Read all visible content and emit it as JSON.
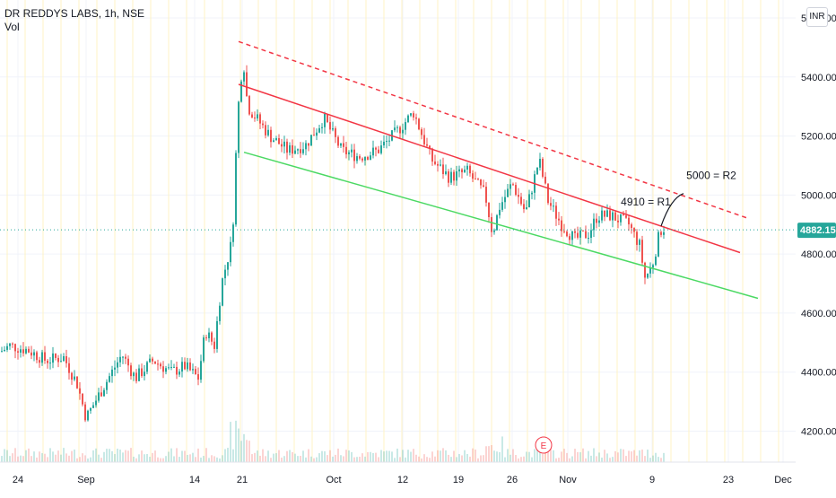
{
  "header": {
    "symbol_line": "DR REDDYS LABS, 1h, NSE",
    "volume_label": "Vol"
  },
  "currency_badge": "INR",
  "colors": {
    "up": "#26a69a",
    "down": "#ef5350",
    "resistance_line": "#f23645",
    "support_line": "#4cd964",
    "price_marker": "#26a69a",
    "grid": "#f0f3fa",
    "session_divider": "#fff3c4"
  },
  "chart_data": {
    "type": "candlestick",
    "title": "DR REDDYS LABS, 1h, NSE",
    "y_ticks": [
      {
        "label": "4200.00",
        "value": 4200
      },
      {
        "label": "4400.00",
        "value": 4400
      },
      {
        "label": "4600.00",
        "value": 4600
      },
      {
        "label": "4800.00",
        "value": 4800
      },
      {
        "label": "5000.00",
        "value": 5000
      },
      {
        "label": "5200.00",
        "value": 5200
      },
      {
        "label": "5400.00",
        "value": 5400
      },
      {
        "label": "5600.00",
        "value": 5600
      }
    ],
    "ylim": [
      4125,
      5635
    ],
    "x_ticks": [
      "24",
      "Sep",
      "14",
      "21",
      "Oct",
      "12",
      "19",
      "26",
      "Nov",
      "9",
      "23",
      "Dec"
    ],
    "last_price": {
      "label": "4882.15",
      "value": 4882.15
    },
    "price_path": [
      [
        0,
        4470
      ],
      [
        10,
        4490
      ],
      [
        30,
        4475
      ],
      [
        50,
        4440
      ],
      [
        70,
        4450
      ],
      [
        85,
        4360
      ],
      [
        95,
        4245
      ],
      [
        105,
        4300
      ],
      [
        120,
        4380
      ],
      [
        135,
        4460
      ],
      [
        150,
        4380
      ],
      [
        170,
        4440
      ],
      [
        190,
        4400
      ],
      [
        205,
        4420
      ],
      [
        220,
        4380
      ],
      [
        228,
        4540
      ],
      [
        238,
        4490
      ],
      [
        246,
        4700
      ],
      [
        258,
        4850
      ],
      [
        264,
        5280
      ],
      [
        270,
        5470
      ],
      [
        275,
        5300
      ],
      [
        300,
        5200
      ],
      [
        320,
        5150
      ],
      [
        340,
        5170
      ],
      [
        360,
        5260
      ],
      [
        380,
        5150
      ],
      [
        400,
        5130
      ],
      [
        420,
        5150
      ],
      [
        440,
        5210
      ],
      [
        460,
        5280
      ],
      [
        480,
        5120
      ],
      [
        500,
        5060
      ],
      [
        520,
        5080
      ],
      [
        540,
        5000
      ],
      [
        548,
        4870
      ],
      [
        556,
        4960
      ],
      [
        570,
        5040
      ],
      [
        585,
        4940
      ],
      [
        600,
        5120
      ],
      [
        610,
        4980
      ],
      [
        625,
        4900
      ],
      [
        640,
        4850
      ],
      [
        655,
        4870
      ],
      [
        665,
        4930
      ],
      [
        680,
        4930
      ],
      [
        700,
        4900
      ],
      [
        712,
        4830
      ],
      [
        718,
        4720
      ],
      [
        726,
        4760
      ],
      [
        735,
        4880
      ],
      [
        740,
        4890
      ]
    ],
    "lines": [
      {
        "name": "upper-dashed-resistance",
        "style": "dashed",
        "color": "#f23645",
        "from": [
          266,
          5520
        ],
        "to": [
          835,
          4920
        ]
      },
      {
        "name": "channel-resistance",
        "style": "solid",
        "color": "#f23645",
        "from": [
          266,
          5375
        ],
        "to": [
          825,
          4805
        ]
      },
      {
        "name": "channel-support",
        "style": "solid",
        "color": "#4cd964",
        "from": [
          272,
          5145
        ],
        "to": [
          845,
          4650
        ]
      }
    ],
    "annotations": [
      {
        "text": "5000 = R2",
        "at": [
          793,
          5055
        ]
      },
      {
        "text": "4910 = R1",
        "at": [
          720,
          4965
        ]
      }
    ],
    "event_marker": "E"
  }
}
